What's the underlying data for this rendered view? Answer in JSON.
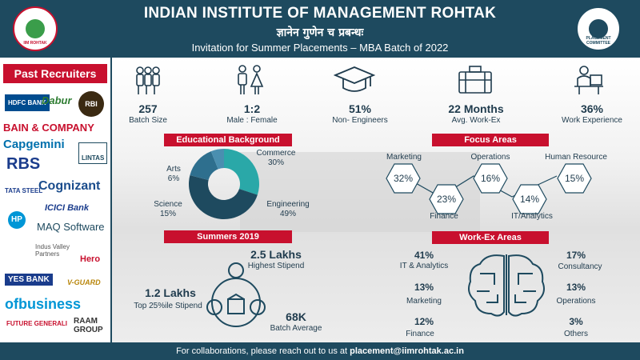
{
  "header": {
    "title": "INDIAN INSTITUTE OF MANAGEMENT ROHTAK",
    "motto": "ज्ञानेन गुणेन च प्रबन्धः",
    "subtitle": "Invitation for Summer Placements – MBA Batch of 2022",
    "logo_left_text": "IIM ROHTAK",
    "logo_right_text": "PLACEMENT COMMITTEE"
  },
  "sidebar": {
    "title": "Past Recruiters",
    "recruiters": [
      "HDFC BANK",
      "Dabur",
      "RBI",
      "BAIN & COMPANY",
      "Capgemini",
      "LINTAS",
      "RBS",
      "TATA STEEL",
      "Cognizant",
      "ICICI Bank",
      "HP",
      "MAQ Software",
      "Indus Valley Partners",
      "Hero",
      "YES BANK",
      "V-GUARD",
      "ofbusiness",
      "FUTURE GENERALI",
      "RAAM GROUP"
    ]
  },
  "stats": [
    {
      "value": "257",
      "label": "Batch Size",
      "icon": "people-group-icon"
    },
    {
      "value": "1:2",
      "label": "Male : Female",
      "icon": "male-female-icon"
    },
    {
      "value": "51%",
      "label": "Non- Engineers",
      "icon": "graduation-cap-icon"
    },
    {
      "value": "22 Months",
      "label": "Avg. Work-Ex",
      "icon": "briefcase-icon"
    },
    {
      "value": "36%",
      "label": "Work Experience",
      "icon": "worker-desk-icon"
    }
  ],
  "education": {
    "title": "Educational Background",
    "slices": [
      {
        "name": "Commerce",
        "value": 30,
        "label": "30%",
        "color": "#2aa8a8"
      },
      {
        "name": "Engineering",
        "value": 49,
        "label": "49%",
        "color": "#1e4a5f"
      },
      {
        "name": "Science",
        "value": 15,
        "label": "15%",
        "color": "#2e6f8e"
      },
      {
        "name": "Arts",
        "value": 6,
        "label": "6%",
        "color": "#4a8fb0"
      }
    ]
  },
  "focus": {
    "title": "Focus Areas",
    "items": [
      {
        "name": "Marketing",
        "value": "32%"
      },
      {
        "name": "Operations",
        "value": "16%"
      },
      {
        "name": "Human Resource",
        "value": "15%"
      },
      {
        "name": "Finance",
        "value": "23%"
      },
      {
        "name": "IT/Analytics",
        "value": "14%"
      }
    ]
  },
  "summers": {
    "title": "Summers 2019",
    "highest_value": "2.5 Lakhs",
    "highest_label": "Highest Stipend",
    "top25_value": "1.2 Lakhs",
    "top25_label": "Top 25%ile Stipend",
    "average_value": "68K",
    "average_label": "Batch Average"
  },
  "workex": {
    "title": "Work-Ex Areas",
    "items": [
      {
        "value": "41%",
        "label": "IT & Analytics"
      },
      {
        "value": "13%",
        "label": "Marketing"
      },
      {
        "value": "12%",
        "label": "Finance"
      },
      {
        "value": "17%",
        "label": "Consultancy"
      },
      {
        "value": "13%",
        "label": "Operations"
      },
      {
        "value": "3%",
        "label": "Others"
      }
    ]
  },
  "footer": {
    "text": "For collaborations, please reach out to us at ",
    "email": "placement@iimrohtak.ac.in"
  },
  "colors": {
    "primary": "#1e4a5f",
    "accent": "#c8102e",
    "teal": "#2aa8a8"
  }
}
